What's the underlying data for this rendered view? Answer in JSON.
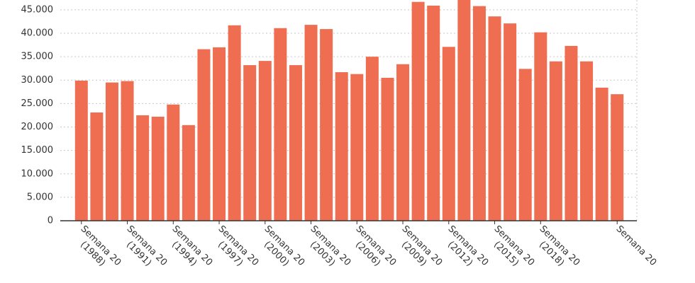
{
  "chart_data": {
    "type": "bar",
    "categories": [
      "Semana 20 (1988)",
      null,
      null,
      "Semana 20 (1991)",
      null,
      null,
      "Semana 20 (1994)",
      null,
      null,
      "Semana 20 (1997)",
      null,
      null,
      "Semana 20 (2000)",
      null,
      null,
      "Semana 20 (2003)",
      null,
      null,
      "Semana 20 (2006)",
      null,
      null,
      "Semana 20 (2009)",
      null,
      null,
      "Semana 20 (2012)",
      null,
      null,
      "Semana 20 (2015)",
      null,
      null,
      "Semana 20 (2018)",
      null,
      null,
      null,
      null,
      "Semana 20"
    ],
    "values": [
      29900,
      23100,
      29500,
      29800,
      22500,
      22200,
      24800,
      20400,
      36600,
      37000,
      41700,
      33200,
      34100,
      41100,
      33200,
      41800,
      40900,
      31700,
      31300,
      35000,
      30500,
      33400,
      46700,
      45900,
      37100,
      47600,
      45800,
      43600,
      42100,
      32400,
      40200,
      34000,
      37300,
      34000,
      28400,
      27000
    ],
    "color": "#ef6e51",
    "ylim": [
      0,
      47100
    ],
    "yticks": [
      {
        "value": 0,
        "label": "0"
      },
      {
        "value": 5000,
        "label": "5.000"
      },
      {
        "value": 10000,
        "label": "10.000"
      },
      {
        "value": 15000,
        "label": "15.000"
      },
      {
        "value": 20000,
        "label": "20.000"
      },
      {
        "value": 25000,
        "label": "25.000"
      },
      {
        "value": 30000,
        "label": "30.000"
      },
      {
        "value": 35000,
        "label": "35.000"
      },
      {
        "value": 40000,
        "label": "40.000"
      },
      {
        "value": 45000,
        "label": "45.000"
      }
    ],
    "grid": true
  }
}
